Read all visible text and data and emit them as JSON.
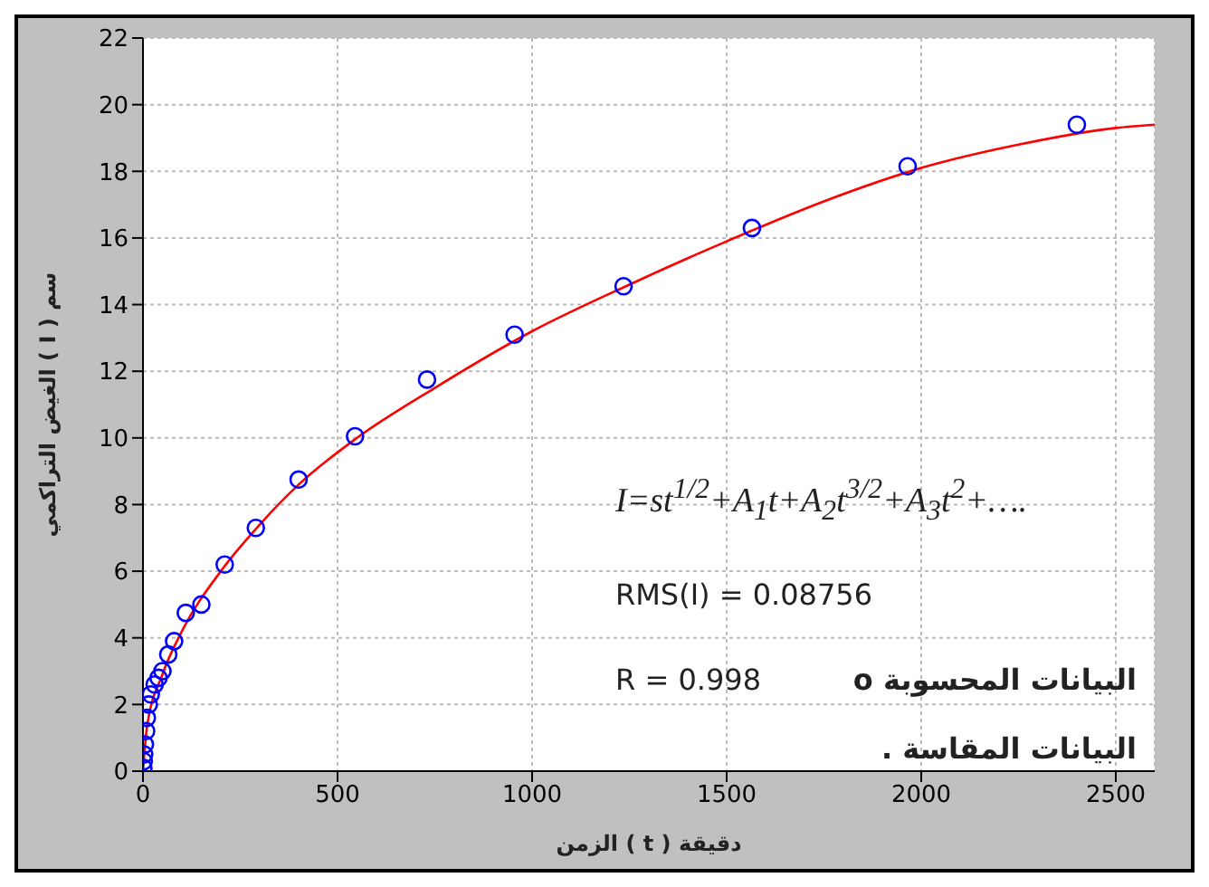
{
  "chart_data": {
    "type": "scatter",
    "xlabel": "الزمن ( t ) دقيقة",
    "ylabel": "الغيض التراكمي ( I ) سم",
    "xlim": [
      0,
      2600
    ],
    "xticks": [
      0,
      500,
      1000,
      1500,
      2000,
      2500
    ],
    "ylim": [
      0,
      22
    ],
    "yticks": [
      0,
      2,
      4,
      6,
      8,
      10,
      12,
      14,
      16,
      18,
      20,
      22
    ],
    "grid": true,
    "series": [
      {
        "marker": "circle",
        "color": "#0000ff",
        "x": [
          1,
          2,
          3,
          5,
          8,
          10,
          15,
          20,
          30,
          40,
          50,
          65,
          80,
          110,
          150,
          210,
          290,
          400,
          545,
          730,
          955,
          1235,
          1565,
          1965,
          2400
        ],
        "values": [
          0.1,
          0.3,
          0.5,
          0.8,
          1.2,
          1.6,
          2.0,
          2.3,
          2.6,
          2.8,
          3.0,
          3.5,
          3.9,
          4.75,
          5.0,
          6.2,
          7.3,
          8.75,
          10.05,
          11.75,
          13.1,
          14.55,
          16.3,
          18.15,
          19.4
        ]
      },
      {
        "type": "line",
        "marker": "none",
        "line_style": "solid",
        "color": "#ff0000",
        "x": [
          0,
          10,
          50,
          100,
          200,
          300,
          400,
          550,
          750,
          1000,
          1250,
          1500,
          1750,
          2000,
          2250,
          2500,
          2600
        ],
        "values": [
          0,
          1.3,
          2.9,
          4.2,
          6.0,
          7.4,
          8.6,
          10.0,
          11.5,
          13.2,
          14.6,
          15.9,
          17.1,
          18.1,
          18.8,
          19.3,
          19.4
        ]
      }
    ],
    "annotations": [
      "I=st$^{1/2}$+A$_{1}$t+A$_{2}$t$^{3/2}$+A$_{3}$t$^{2}$+….",
      "RMS(I) = 0.08756",
      "R = 0.998",
      "البيانات المحسوبة o",
      "البيانات المقاسة ."
    ]
  }
}
